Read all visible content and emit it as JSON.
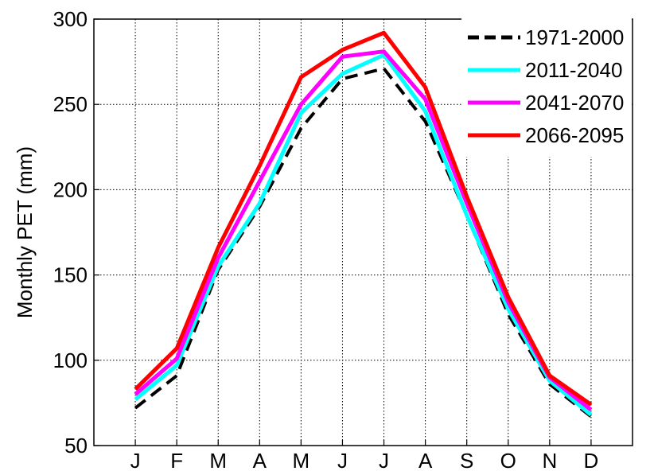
{
  "chart_data": {
    "type": "line",
    "title": "",
    "xlabel": "",
    "ylabel": "Monthly PET (mm)",
    "categories": [
      "J",
      "F",
      "M",
      "A",
      "M",
      "J",
      "J",
      "A",
      "S",
      "O",
      "N",
      "D"
    ],
    "ylim": [
      50,
      300
    ],
    "yticks": [
      50,
      100,
      150,
      200,
      250,
      300
    ],
    "grid": true,
    "legend_position": "top-right",
    "series": [
      {
        "name": "1971-2000",
        "color": "#000000",
        "style": "dashed",
        "values": [
          72,
          91,
          153,
          190,
          236,
          265,
          271,
          240,
          185,
          127,
          86,
          67
        ]
      },
      {
        "name": "2011-2040",
        "color": "#00ffff",
        "style": "solid",
        "values": [
          77,
          97,
          155,
          192,
          245,
          268,
          279,
          246,
          185,
          130,
          88,
          68
        ]
      },
      {
        "name": "2041-2070",
        "color": "#ff00ff",
        "style": "solid",
        "values": [
          80,
          101,
          160,
          205,
          250,
          278,
          281,
          253,
          192,
          134,
          90,
          71
        ]
      },
      {
        "name": "2066-2095",
        "color": "#ff0000",
        "style": "solid",
        "values": [
          83,
          107,
          166,
          214,
          266,
          282,
          292,
          260,
          196,
          137,
          91,
          74
        ]
      }
    ]
  }
}
